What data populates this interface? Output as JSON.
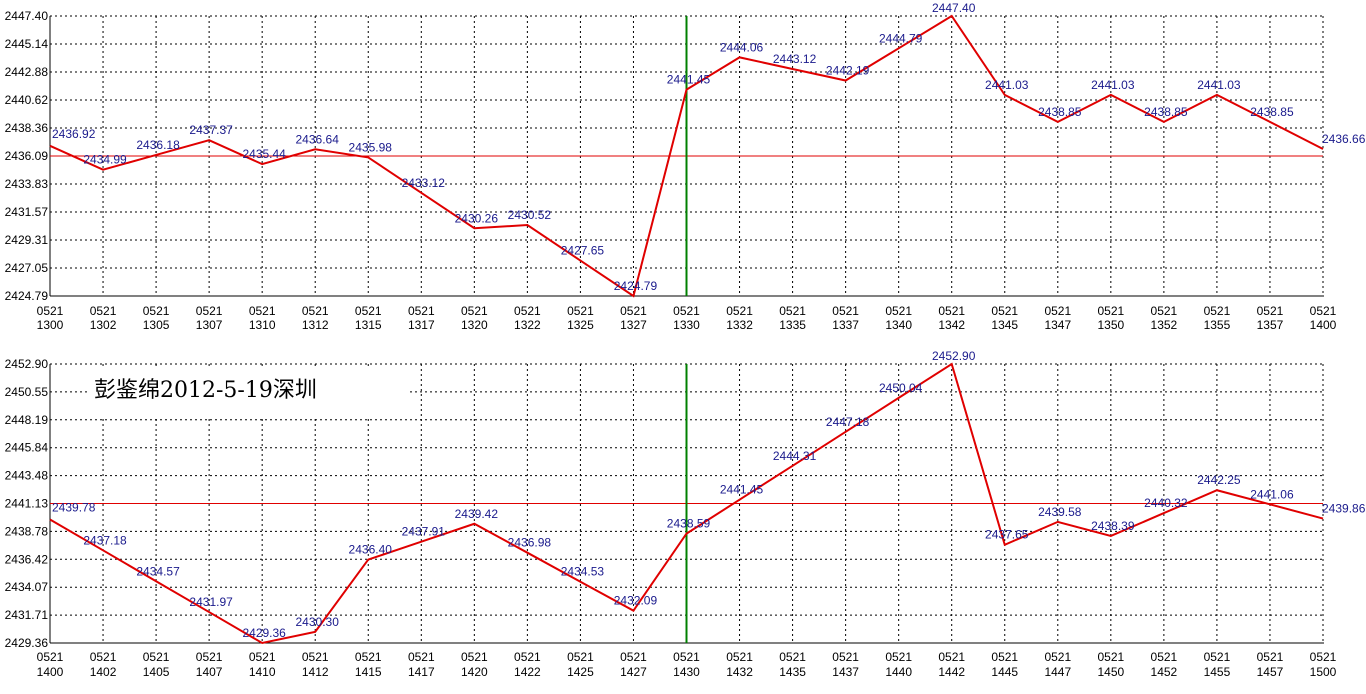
{
  "chart_data": [
    {
      "type": "line",
      "x": [
        "1300",
        "1302",
        "1305",
        "1307",
        "1310",
        "1312",
        "1315",
        "1317",
        "1320",
        "1322",
        "1325",
        "1327",
        "1330",
        "1332",
        "1335",
        "1337",
        "1340",
        "1342",
        "1345",
        "1347",
        "1350",
        "1352",
        "1355",
        "1357",
        "1400"
      ],
      "x_date_prefix": "0521",
      "values": [
        2436.92,
        2434.99,
        2436.18,
        2437.37,
        2435.44,
        2436.64,
        2435.98,
        2433.12,
        2430.26,
        2430.52,
        2427.65,
        2424.79,
        2441.45,
        2444.06,
        2443.12,
        2442.19,
        2444.79,
        2447.4,
        2441.03,
        2438.85,
        2441.03,
        2438.85,
        2441.03,
        2438.85,
        2436.66
      ],
      "yticks": [
        "2447.40",
        "2445.14",
        "2442.88",
        "2440.62",
        "2438.36",
        "2436.09",
        "2433.83",
        "2431.57",
        "2429.31",
        "2427.05",
        "2424.79"
      ],
      "ylim": [
        2424.79,
        2447.4
      ],
      "reference_line": 2436.09,
      "marker_x": "1330",
      "grid": true,
      "colors": {
        "line": "#e00000",
        "reference": "#e00000",
        "marker": "#008000",
        "labels": "#1a1a8c",
        "grid": "#000000"
      }
    },
    {
      "type": "line",
      "x": [
        "1400",
        "1402",
        "1405",
        "1407",
        "1410",
        "1412",
        "1415",
        "1417",
        "1420",
        "1422",
        "1425",
        "1427",
        "1430",
        "1432",
        "1435",
        "1437",
        "1440",
        "1442",
        "1445",
        "1447",
        "1450",
        "1452",
        "1455",
        "1457",
        "1500"
      ],
      "x_date_prefix": "0521",
      "values": [
        2439.78,
        2437.18,
        2434.57,
        2431.97,
        2429.36,
        2430.3,
        2436.4,
        2437.91,
        2439.42,
        2436.98,
        2434.53,
        2432.09,
        2438.59,
        2441.45,
        2444.31,
        2447.18,
        2450.04,
        2452.9,
        2437.65,
        2439.58,
        2438.39,
        2440.32,
        2442.25,
        2441.06,
        2439.86
      ],
      "yticks": [
        "2452.90",
        "2450.55",
        "2448.19",
        "2445.84",
        "2443.48",
        "2441.13",
        "2438.78",
        "2436.42",
        "2434.07",
        "2431.71",
        "2429.36"
      ],
      "ylim": [
        2429.36,
        2452.9
      ],
      "reference_line": 2441.13,
      "marker_x": "1430",
      "grid": true,
      "overlay_text": "彭鉴绵2012-5-19深圳",
      "colors": {
        "line": "#e00000",
        "reference": "#e00000",
        "marker": "#008000",
        "labels": "#1a1a8c",
        "grid": "#000000"
      }
    }
  ]
}
